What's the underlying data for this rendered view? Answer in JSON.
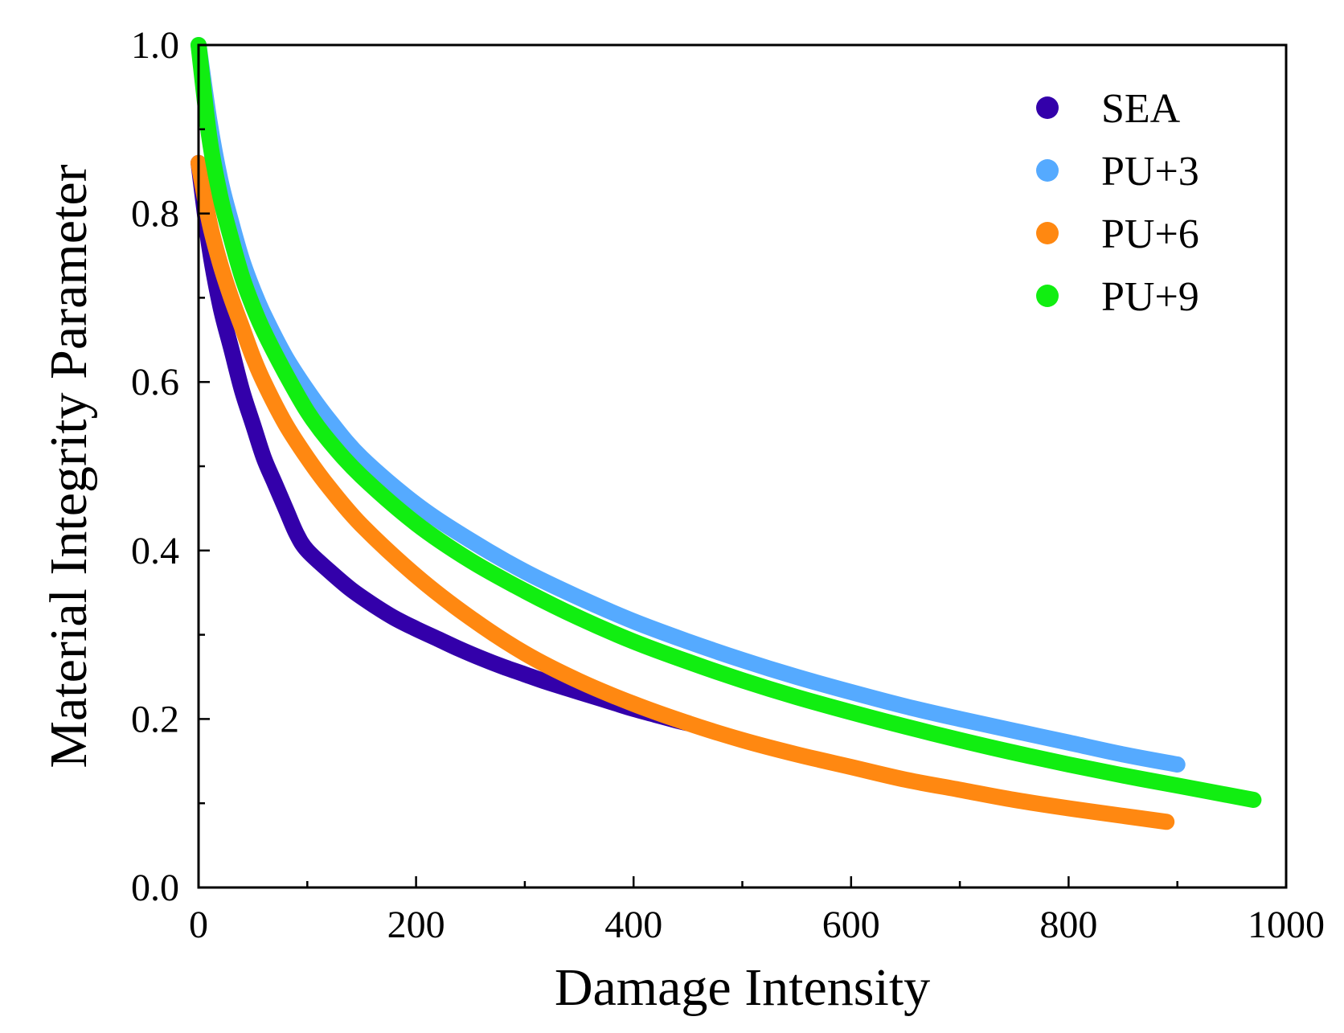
{
  "chart_data": {
    "type": "scatter",
    "title": "",
    "xlabel": "Damage Intensity",
    "ylabel": "Material Integrity Parameter",
    "xlim": [
      0,
      1000
    ],
    "ylim": [
      0.0,
      1.0
    ],
    "xticks": [
      "0",
      "200",
      "400",
      "600",
      "800",
      "1000"
    ],
    "yticks": [
      "0.0",
      "0.2",
      "0.4",
      "0.6",
      "0.8",
      "1.0"
    ],
    "legend_position": "top-right",
    "grid": false,
    "series": [
      {
        "name": "SEA",
        "color": "#3300aa",
        "x": [
          0,
          10,
          20,
          30,
          40,
          50,
          60,
          70,
          80,
          90,
          100,
          120,
          140,
          160,
          180,
          200,
          220,
          240,
          260,
          280,
          300,
          320,
          340,
          360,
          380,
          400,
          420,
          440,
          450
        ],
        "y": [
          0.86,
          0.76,
          0.69,
          0.64,
          0.59,
          0.55,
          0.51,
          0.48,
          0.45,
          0.42,
          0.4,
          0.376,
          0.354,
          0.336,
          0.32,
          0.307,
          0.295,
          0.283,
          0.272,
          0.262,
          0.253,
          0.244,
          0.236,
          0.228,
          0.22,
          0.212,
          0.205,
          0.198,
          0.195
        ]
      },
      {
        "name": "PU+3",
        "color": "#55aaff",
        "x": [
          0,
          10,
          20,
          30,
          40,
          50,
          60,
          80,
          100,
          120,
          150,
          200,
          250,
          300,
          350,
          400,
          450,
          500,
          550,
          600,
          650,
          700,
          750,
          800,
          850,
          900
        ],
        "y": [
          1.0,
          0.91,
          0.84,
          0.79,
          0.745,
          0.71,
          0.68,
          0.63,
          0.59,
          0.555,
          0.51,
          0.455,
          0.412,
          0.375,
          0.344,
          0.316,
          0.292,
          0.27,
          0.25,
          0.232,
          0.215,
          0.2,
          0.186,
          0.172,
          0.158,
          0.146
        ]
      },
      {
        "name": "PU+6",
        "color": "#ff8811",
        "x": [
          0,
          10,
          20,
          30,
          40,
          50,
          60,
          80,
          100,
          120,
          150,
          200,
          250,
          300,
          350,
          400,
          450,
          500,
          550,
          600,
          650,
          700,
          750,
          800,
          850,
          890
        ],
        "y": [
          0.86,
          0.79,
          0.74,
          0.7,
          0.665,
          0.63,
          0.6,
          0.55,
          0.51,
          0.475,
          0.43,
          0.37,
          0.32,
          0.278,
          0.245,
          0.218,
          0.195,
          0.175,
          0.158,
          0.143,
          0.128,
          0.116,
          0.104,
          0.094,
          0.085,
          0.078
        ]
      },
      {
        "name": "PU+9",
        "color": "#11ee11",
        "x": [
          0,
          10,
          20,
          30,
          40,
          50,
          60,
          80,
          100,
          120,
          150,
          200,
          250,
          300,
          350,
          400,
          450,
          500,
          550,
          600,
          650,
          700,
          750,
          800,
          850,
          900,
          970
        ],
        "y": [
          1.0,
          0.89,
          0.82,
          0.77,
          0.725,
          0.69,
          0.66,
          0.61,
          0.565,
          0.53,
          0.488,
          0.432,
          0.388,
          0.352,
          0.32,
          0.292,
          0.268,
          0.246,
          0.226,
          0.208,
          0.191,
          0.175,
          0.16,
          0.146,
          0.133,
          0.121,
          0.104
        ]
      }
    ]
  }
}
